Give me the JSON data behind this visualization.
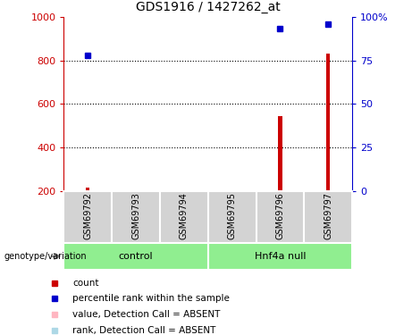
{
  "title": "GDS1916 / 1427262_at",
  "samples": [
    "GSM69792",
    "GSM69793",
    "GSM69794",
    "GSM69795",
    "GSM69796",
    "GSM69797"
  ],
  "red_bars": [
    215,
    200,
    200,
    200,
    545,
    830
  ],
  "blue_dots": [
    78,
    null,
    null,
    null,
    93,
    96
  ],
  "ylim_left": [
    200,
    1000
  ],
  "ylim_right": [
    0,
    100
  ],
  "left_ticks": [
    200,
    400,
    600,
    800,
    1000
  ],
  "right_ticks": [
    0,
    25,
    50,
    75,
    100
  ],
  "right_tick_labels": [
    "0",
    "25",
    "50",
    "75",
    "100%"
  ],
  "grid_lines": [
    400,
    600,
    800
  ],
  "bar_color": "#CC0000",
  "dot_color": "#0000CC",
  "absent_bar_color": "#FFB6C1",
  "absent_dot_color": "#ADD8E6",
  "axis_color_left": "#CC0000",
  "axis_color_right": "#0000CC",
  "legend": [
    {
      "label": "count",
      "color": "#CC0000"
    },
    {
      "label": "percentile rank within the sample",
      "color": "#0000CC"
    },
    {
      "label": "value, Detection Call = ABSENT",
      "color": "#FFB6C1"
    },
    {
      "label": "rank, Detection Call = ABSENT",
      "color": "#ADD8E6"
    }
  ],
  "genotype_label": "genotype/variation",
  "control_label": "control",
  "hnf4a_label": "Hnf4a null",
  "sample_box_color": "#D3D3D3",
  "group_box_color": "#90EE90",
  "baseline": 200,
  "bar_width": 0.08
}
